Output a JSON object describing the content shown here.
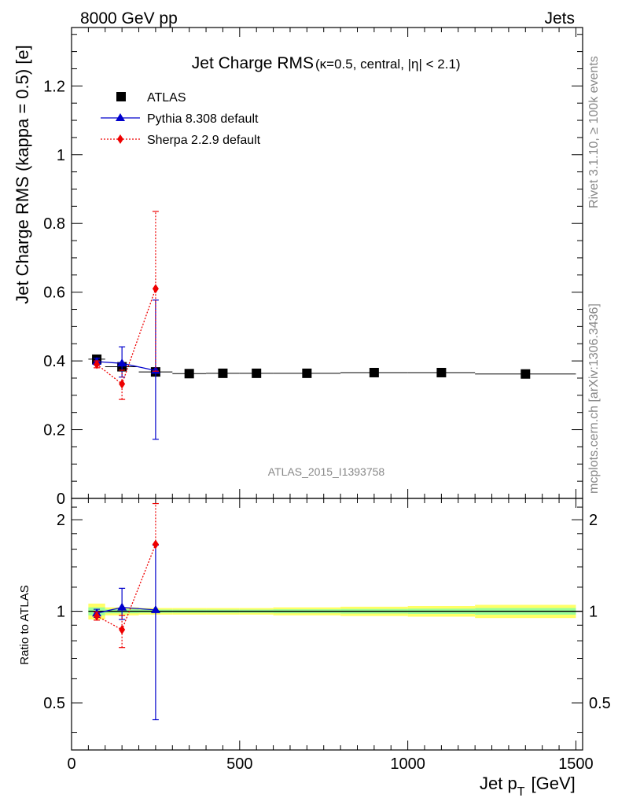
{
  "header": {
    "left": "8000 GeV pp",
    "right": "Jets"
  },
  "side_labels": {
    "rivet": "Rivet 3.1.10, ≥ 100k events",
    "mcplots": "mcplots.cern.ch [arXiv:1306.3436]"
  },
  "analysis_id": "ATLAS_2015_I1393758",
  "chart_data": [
    {
      "type": "scatter",
      "title_main": "Jet Charge RMS",
      "title_sub": "(κ=0.5, central, |η| < 2.1)",
      "ylabel": "Jet Charge RMS (kappa = 0.5) [e]",
      "xlim": [
        0,
        1520
      ],
      "ylim": [
        0,
        1.37
      ],
      "yticks": [
        0,
        0.2,
        0.4,
        0.6,
        0.8,
        1,
        1.2
      ],
      "ytick_labels": [
        "0",
        "0.2",
        "0.4",
        "0.6",
        "0.8",
        "1",
        "1.2"
      ],
      "legend_position": "top-left",
      "series": [
        {
          "name": "ATLAS",
          "color": "#000000",
          "marker": "square",
          "x": [
            75,
            150,
            250,
            350,
            450,
            550,
            700,
            900,
            1100,
            1350
          ],
          "xerr": [
            25,
            50,
            50,
            50,
            50,
            50,
            100,
            100,
            100,
            150
          ],
          "y": [
            0.405,
            0.383,
            0.368,
            0.363,
            0.364,
            0.364,
            0.364,
            0.366,
            0.366,
            0.362
          ]
        },
        {
          "name": "Pythia 8.308 default",
          "color": "#0000cc",
          "marker": "triangle",
          "line": "solid",
          "x": [
            75,
            150,
            250
          ],
          "y": [
            0.398,
            0.393,
            0.372
          ],
          "yerr_low": [
            0.01,
            0.04,
            0.2
          ],
          "yerr_high": [
            0.01,
            0.048,
            0.205
          ]
        },
        {
          "name": "Sherpa 2.2.9 default",
          "color": "#ee0000",
          "marker": "diamond",
          "line": "dotted",
          "x": [
            75,
            150,
            250
          ],
          "y": [
            0.39,
            0.333,
            0.61
          ],
          "yerr_low": [
            0.01,
            0.045,
            0.24
          ],
          "yerr_high": [
            0.01,
            0.04,
            0.225
          ]
        }
      ]
    },
    {
      "type": "scatter",
      "ylabel": "Ratio to ATLAS",
      "xlabel": "Jet p",
      "xlabel_sub": "T",
      "xlabel_unit": "[GeV]",
      "xlim": [
        0,
        1520
      ],
      "ylim": [
        0.35,
        2.35
      ],
      "yscale": "log",
      "yticks": [
        0.5,
        1,
        2
      ],
      "ytick_labels": [
        "0.5",
        "1",
        "2"
      ],
      "xticks": [
        0,
        500,
        1000,
        1500
      ],
      "xtick_labels": [
        "0",
        "500",
        "1000",
        "1500"
      ],
      "reference_band": {
        "color_outer": "#ffff66",
        "color_inner": "#99ff99",
        "x_low": [
          50,
          100,
          200,
          300,
          400,
          500,
          600,
          800,
          1000,
          1200
        ],
        "x_high": [
          100,
          200,
          300,
          400,
          500,
          600,
          800,
          1000,
          1200,
          1500
        ],
        "half_width": [
          0.06,
          0.03,
          0.025,
          0.025,
          0.025,
          0.025,
          0.03,
          0.035,
          0.04,
          0.05
        ]
      },
      "series": [
        {
          "name": "Pythia 8.308 default",
          "color": "#0000cc",
          "x": [
            75,
            150,
            250
          ],
          "y": [
            0.985,
            1.03,
            1.01
          ],
          "yerr_low": [
            0.03,
            0.09,
            0.57
          ],
          "yerr_high": [
            0.03,
            0.16,
            0.64
          ]
        },
        {
          "name": "Sherpa 2.2.9 default",
          "color": "#ee0000",
          "x": [
            75,
            150,
            250
          ],
          "y": [
            0.965,
            0.87,
            1.66
          ],
          "yerr_low": [
            0.03,
            0.11,
            0.0
          ],
          "yerr_high": [
            0.03,
            0.1,
            0.6
          ]
        }
      ]
    }
  ]
}
